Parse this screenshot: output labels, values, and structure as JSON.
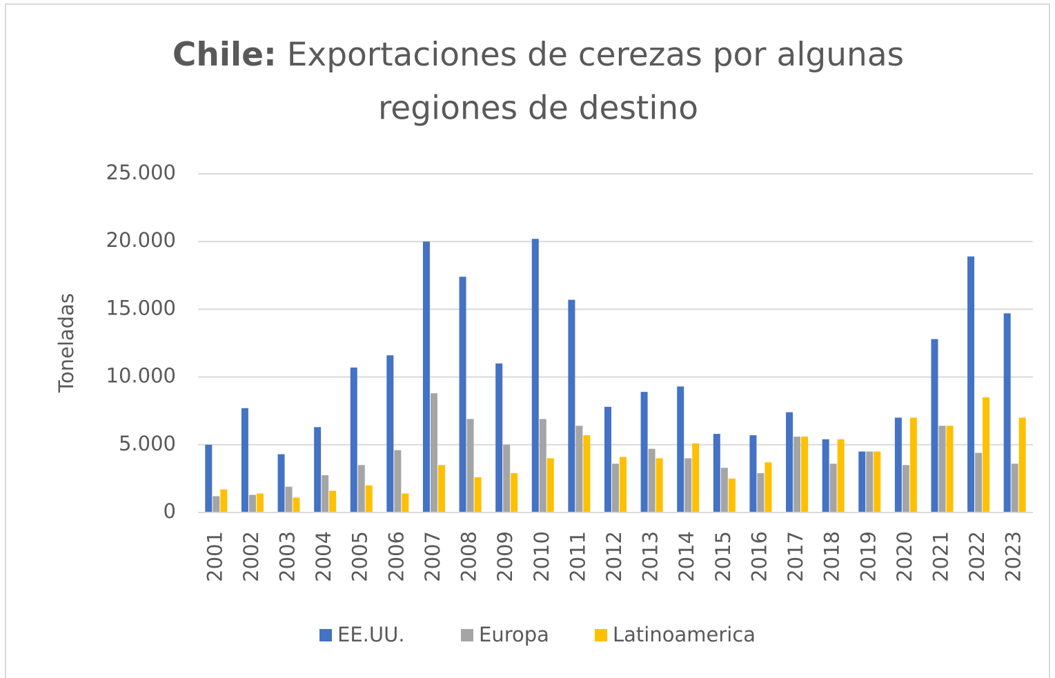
{
  "chart_data": {
    "type": "bar",
    "title": {
      "lead": "Chile:",
      "lines": [
        "Exportaciones de cerezas por algunas",
        "regiones de destino"
      ]
    },
    "y_label": "Toneladas",
    "categories": [
      "2001",
      "2002",
      "2003",
      "2004",
      "2005",
      "2006",
      "2007",
      "2008",
      "2009",
      "2010",
      "2011",
      "2012",
      "2013",
      "2014",
      "2015",
      "2016",
      "2017",
      "2018",
      "2019",
      "2020",
      "2021",
      "2022",
      "2023"
    ],
    "series": [
      {
        "name": "EE.UU.",
        "color": "#4472c4",
        "values": [
          5000,
          7700,
          4300,
          6300,
          10700,
          11600,
          20000,
          17400,
          11000,
          20200,
          15700,
          7800,
          8900,
          9300,
          5800,
          5700,
          7400,
          5400,
          4500,
          7000,
          12800,
          18900,
          14700
        ]
      },
      {
        "name": "Europa",
        "color": "#a5a5a5",
        "values": [
          1200,
          1300,
          1900,
          2750,
          3500,
          4600,
          8800,
          6900,
          5000,
          6900,
          6400,
          3600,
          4700,
          4000,
          3300,
          2900,
          5600,
          3600,
          4500,
          3500,
          6400,
          4400,
          3600
        ]
      },
      {
        "name": "Latinoamerica",
        "color": "#ffc000",
        "values": [
          1700,
          1400,
          1100,
          1600,
          2000,
          1400,
          3500,
          2600,
          2900,
          4000,
          5700,
          4100,
          4000,
          5100,
          2500,
          3700,
          5600,
          5400,
          4500,
          7000,
          6400,
          8500,
          7000
        ]
      }
    ],
    "ylim": [
      0,
      25000
    ],
    "yticks": [
      0,
      {
        "value": 5000,
        "label": "5.000"
      },
      {
        "value": 10000,
        "label": "10.000"
      },
      {
        "value": 15000,
        "label": "15.000"
      },
      {
        "value": 20000,
        "label": "20.000"
      },
      {
        "value": 25000,
        "label": "25.000"
      }
    ],
    "grid": true,
    "legend": "bottom"
  }
}
